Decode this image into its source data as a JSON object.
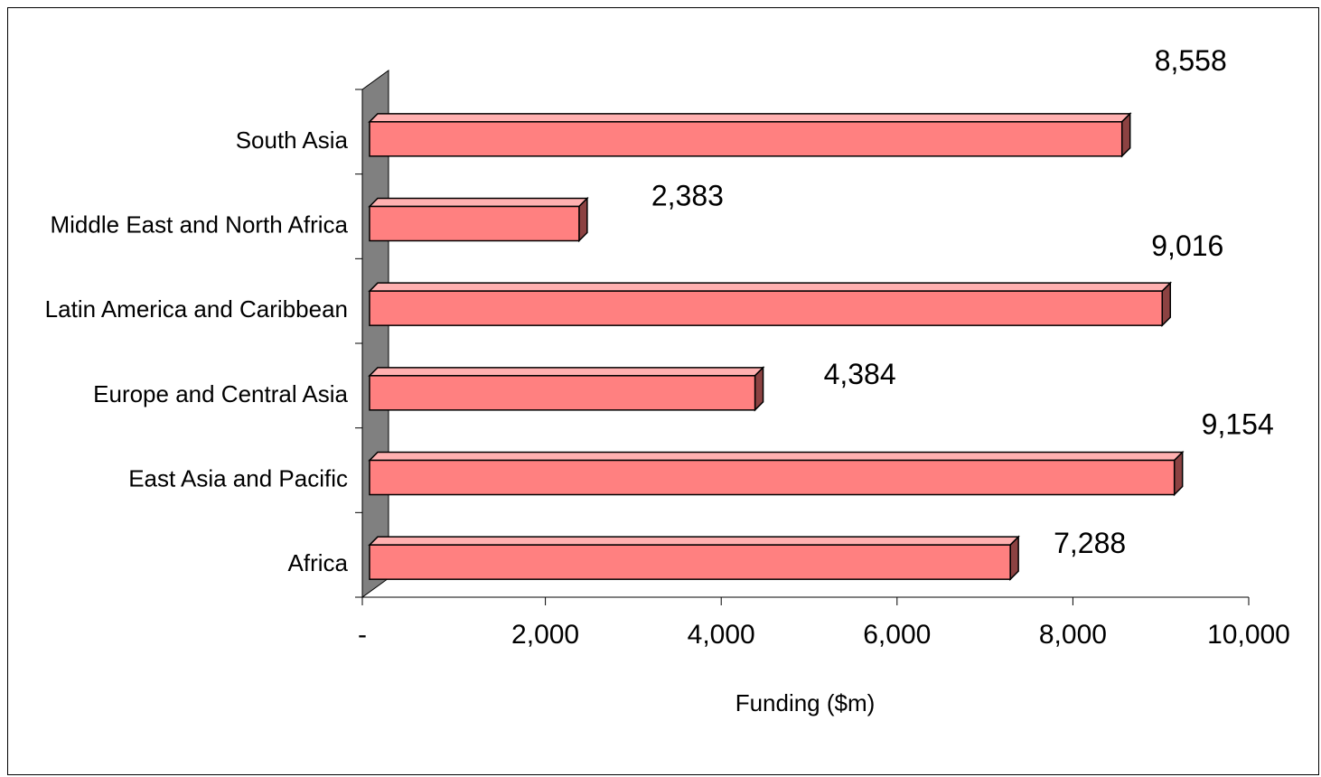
{
  "chart_data": {
    "type": "bar",
    "orientation": "horizontal",
    "title": "",
    "xlabel": "Funding ($m)",
    "ylabel": "",
    "categories": [
      "Africa",
      "East Asia  and Pacific",
      "Europe and Central Asia",
      "Latin America and Caribbean",
      "Middle East and North Africa",
      "South Asia"
    ],
    "values": [
      7288,
      9154,
      4384,
      9016,
      2383,
      8558
    ],
    "data_labels": [
      "7,288",
      "9,154",
      "4,384",
      "9,016",
      "2,383",
      "8,558"
    ],
    "xlim": [
      0,
      10000
    ],
    "x_ticks": [
      0,
      2000,
      4000,
      6000,
      8000,
      10000
    ],
    "x_tick_labels": [
      "-",
      "2,000",
      "4,000",
      "6,000",
      "8,000",
      "10,000"
    ],
    "grid": false,
    "legend": "none",
    "style": "3d",
    "colors": {
      "bar_front": "#ff8080",
      "bar_side": "#8c4242",
      "bar_top": "#ffb0b0",
      "bar_edge": "#000000",
      "wall": "#808080"
    }
  }
}
